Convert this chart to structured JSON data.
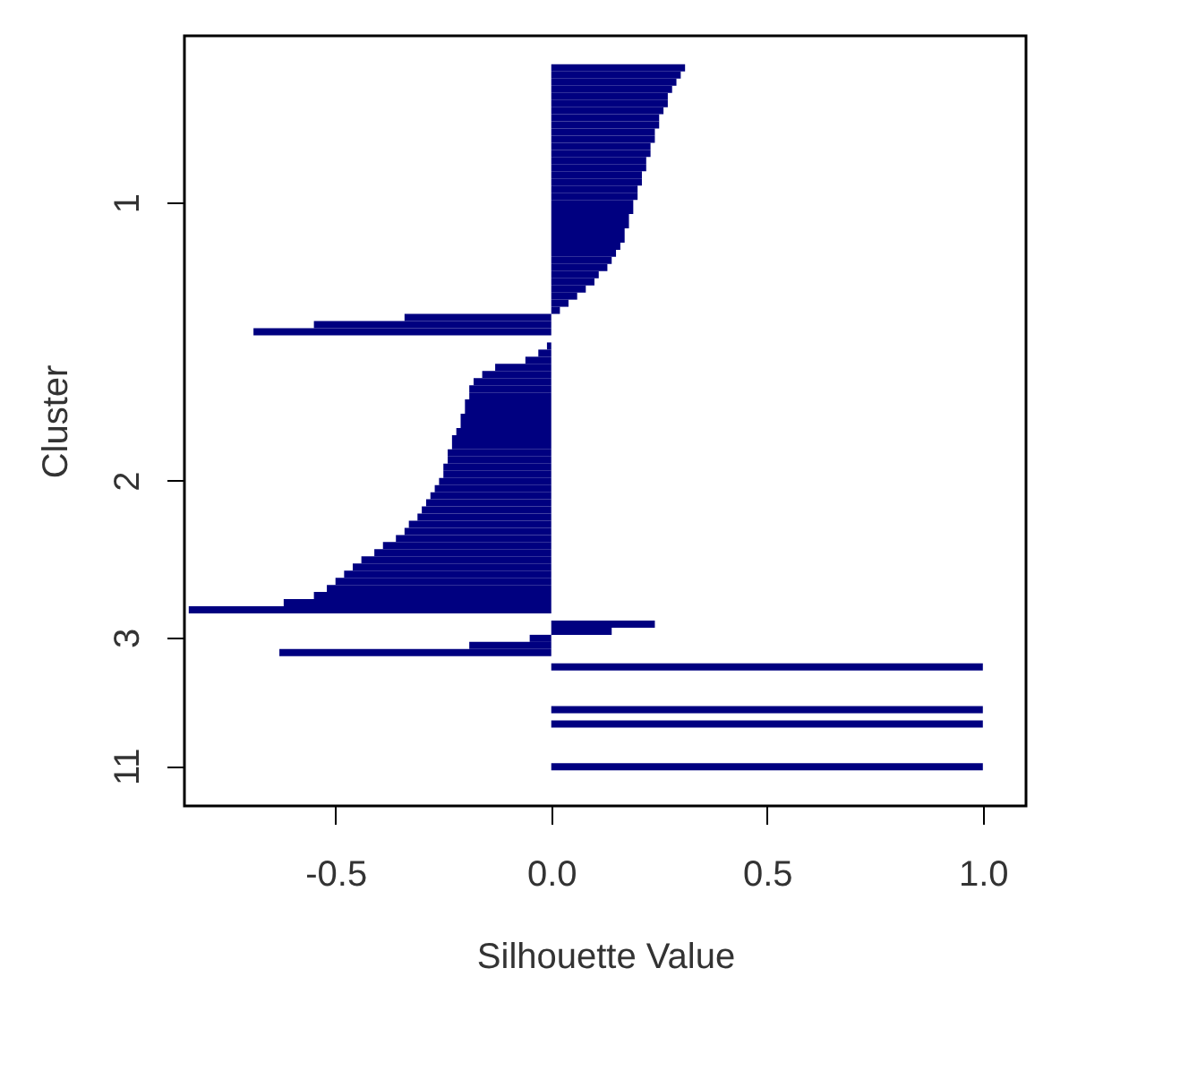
{
  "chart_data": {
    "type": "bar",
    "orientation": "horizontal",
    "xlabel": "Silhouette Value",
    "ylabel": "Cluster",
    "color": "#000080",
    "xlim": [
      -0.85,
      1.1
    ],
    "xticks": [
      {
        "value": -0.5,
        "label": "-0.5"
      },
      {
        "value": 0,
        "label": "0.0"
      },
      {
        "value": 0.5,
        "label": "0.5"
      },
      {
        "value": 1,
        "label": "1.0"
      }
    ],
    "categories": [
      null,
      null,
      null,
      null,
      null,
      null,
      null,
      null,
      null,
      null,
      null,
      null,
      null,
      null,
      null,
      null,
      null,
      null,
      null,
      null,
      null,
      null,
      null,
      "1",
      null,
      null,
      null,
      null,
      null,
      null,
      null,
      null,
      null,
      null,
      null,
      null,
      null,
      null,
      null,
      null,
      null,
      null,
      null,
      null,
      null,
      null,
      null,
      null,
      null,
      null,
      null,
      null,
      null,
      null,
      null,
      null,
      null,
      null,
      null,
      null,
      null,
      null,
      "2",
      null,
      null,
      null,
      null,
      null,
      null,
      null,
      null,
      null,
      null,
      null,
      null,
      null,
      null,
      null,
      null,
      null,
      null,
      null,
      null,
      null,
      "3",
      null,
      null,
      null,
      null,
      null,
      null,
      null,
      null,
      null,
      null,
      null,
      null,
      null,
      null,
      null,
      null,
      null,
      "11",
      null,
      null,
      null,
      null,
      null
    ],
    "values": [
      null,
      null,
      null,
      null,
      0.31,
      0.3,
      0.29,
      0.28,
      0.27,
      0.27,
      0.26,
      0.25,
      0.25,
      0.24,
      0.24,
      0.23,
      0.23,
      0.22,
      0.22,
      0.21,
      0.21,
      0.2,
      0.2,
      0.19,
      0.19,
      0.18,
      0.18,
      0.17,
      0.17,
      0.16,
      0.15,
      0.14,
      0.13,
      0.11,
      0.1,
      0.08,
      0.06,
      0.04,
      0.02,
      -0.34,
      -0.55,
      -0.69,
      null,
      -0.01,
      -0.03,
      -0.06,
      -0.13,
      -0.16,
      -0.18,
      -0.19,
      -0.19,
      -0.2,
      -0.2,
      -0.21,
      -0.21,
      -0.22,
      -0.23,
      -0.23,
      -0.24,
      -0.24,
      -0.25,
      -0.25,
      -0.26,
      -0.27,
      -0.28,
      -0.29,
      -0.3,
      -0.31,
      -0.33,
      -0.34,
      -0.36,
      -0.39,
      -0.41,
      -0.44,
      -0.46,
      -0.48,
      -0.5,
      -0.52,
      -0.55,
      -0.62,
      -0.84,
      null,
      0.24,
      0.14,
      -0.05,
      -0.19,
      -0.63,
      null,
      1,
      null,
      null,
      null,
      null,
      null,
      1,
      null,
      1,
      null,
      null,
      null,
      null,
      null,
      1,
      null,
      null,
      null,
      null,
      null
    ]
  }
}
